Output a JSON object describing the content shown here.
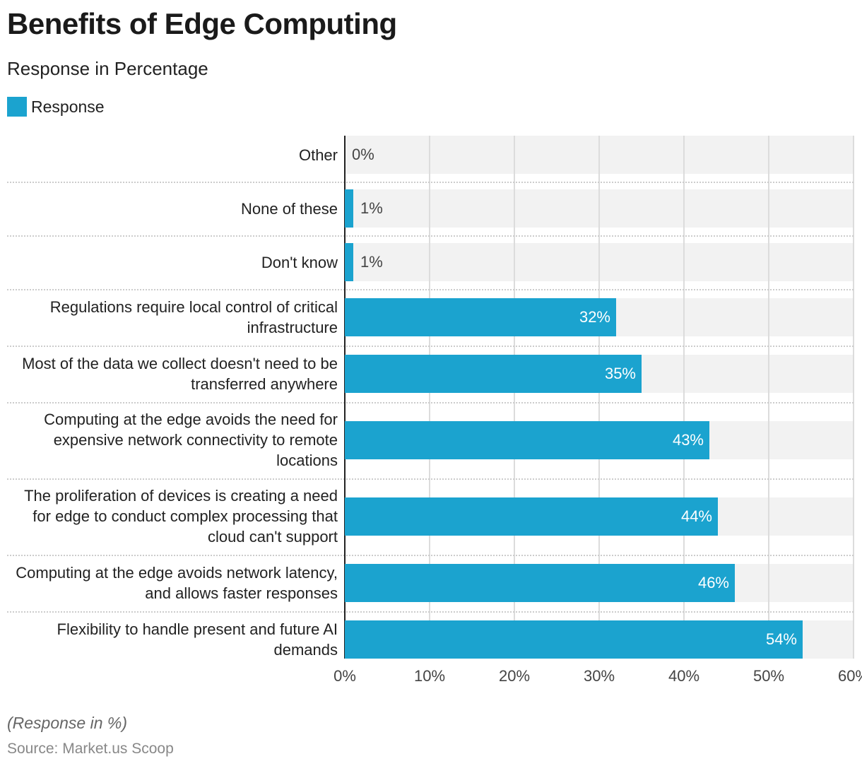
{
  "title": "Benefits of Edge Computing",
  "subtitle": "Response in Percentage",
  "note": "(Response in %)",
  "source": "Source: Market.us Scoop",
  "chart_data": {
    "type": "bar",
    "orientation": "horizontal",
    "title": "Benefits of Edge Computing",
    "subtitle": "Response in Percentage",
    "legend": {
      "position": "top-left",
      "entries": [
        "Response"
      ]
    },
    "categories": [
      "Other",
      "None of these",
      "Don't know",
      "Regulations require local control of critical infrastructure",
      "Most of the data we collect doesn't need to be transferred anywhere",
      "Computing at the edge avoids the need for expensive network connectivity to remote locations",
      "The proliferation of devices is creating a need for edge to conduct complex processing that cloud can't support",
      "Computing at the edge avoids network latency, and allows faster responses",
      "Flexibility to handle present and future AI demands"
    ],
    "series": [
      {
        "name": "Response",
        "values": [
          0,
          1,
          1,
          32,
          35,
          43,
          44,
          46,
          54
        ],
        "color": "#1ba3cf"
      }
    ],
    "data_labels": [
      "0%",
      "1%",
      "1%",
      "32%",
      "35%",
      "43%",
      "44%",
      "46%",
      "54%"
    ],
    "xlim": [
      0,
      60
    ],
    "x_ticks": [
      "0%",
      "10%",
      "20%",
      "30%",
      "40%",
      "50%",
      "60%"
    ],
    "grid": true
  }
}
